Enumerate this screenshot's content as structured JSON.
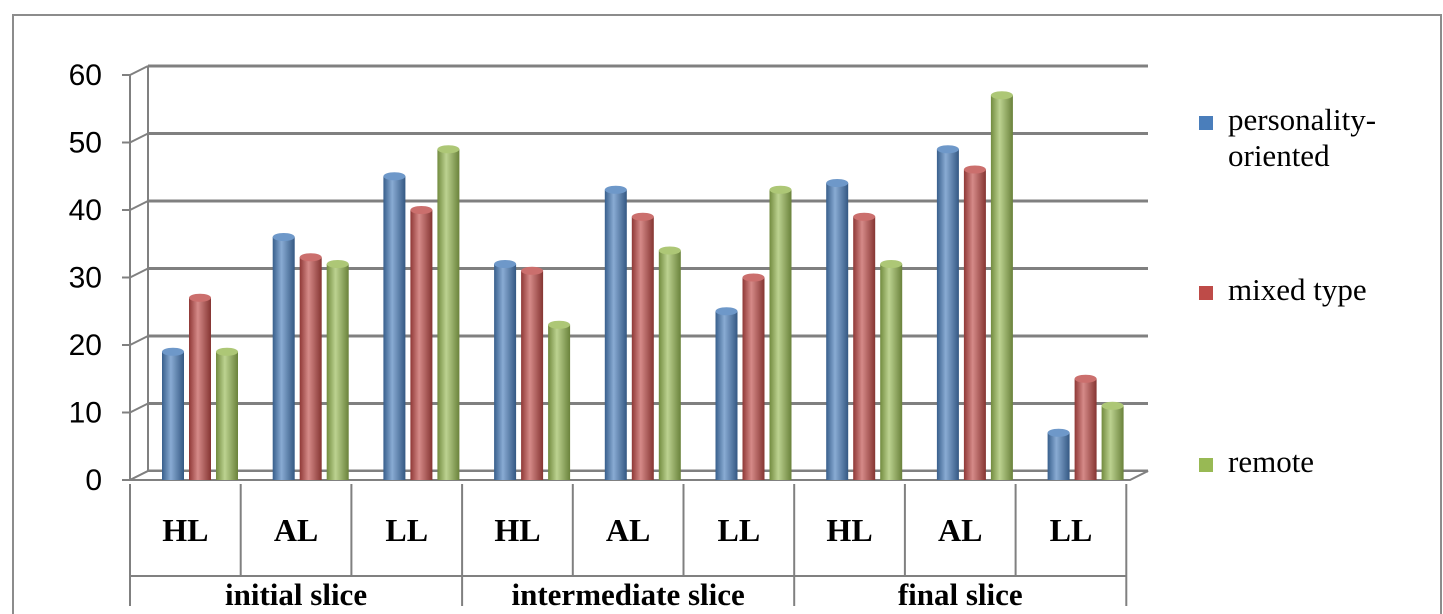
{
  "chart_data": {
    "type": "bar",
    "title": "",
    "xlabel": "",
    "ylabel": "",
    "ylim": [
      0,
      60
    ],
    "yticks": [
      "0",
      "10",
      "20",
      "30",
      "40",
      "50",
      "60"
    ],
    "grid": true,
    "legend_position": "right",
    "categories": [
      "HL",
      "AL",
      "LL",
      "HL",
      "AL",
      "LL",
      "HL",
      "AL",
      "LL"
    ],
    "groups": [
      {
        "label": "initial slice",
        "span": 3
      },
      {
        "label": "intermediate slice",
        "span": 3
      },
      {
        "label": "final slice",
        "span": 3
      }
    ],
    "series": [
      {
        "name": "personality-oriented",
        "name_lines": [
          "personality-",
          "oriented"
        ],
        "color": "#4a7ebb",
        "values": [
          19,
          36,
          45,
          32,
          43,
          25,
          44,
          49,
          7
        ]
      },
      {
        "name": "mixed type",
        "name_lines": [
          "mixed type"
        ],
        "color": "#be4b48",
        "values": [
          27,
          33,
          40,
          31,
          39,
          30,
          39,
          46,
          15
        ]
      },
      {
        "name": "remote",
        "name_lines": [
          "remote"
        ],
        "color": "#98b954",
        "values": [
          19,
          32,
          49,
          23,
          34,
          43,
          32,
          57,
          11
        ]
      }
    ]
  }
}
